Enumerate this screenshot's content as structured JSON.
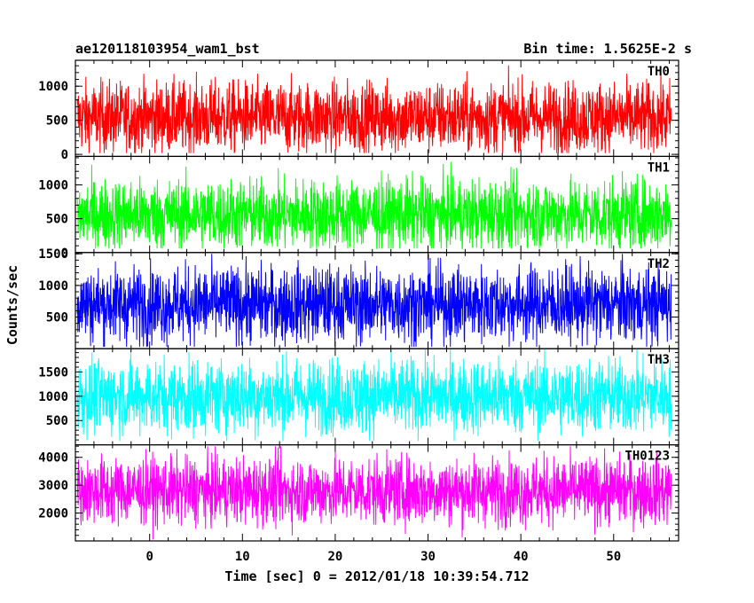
{
  "chart_data": {
    "type": "line",
    "title_left": "ae120118103954_wam1_bst",
    "title_right": "Bin time: 1.5625E-2 s",
    "xlabel": "Time [sec] 0 = 2012/01/18 10:39:54.712",
    "ylabel": "Counts/sec",
    "xlim": [
      -8,
      57
    ],
    "xticks": [
      0,
      10,
      20,
      30,
      40,
      50
    ],
    "bin_time_s": 0.015625,
    "data_range": [
      -7.8,
      56.2
    ],
    "panels": [
      {
        "name": "TH0",
        "color": "#ff0000",
        "ylim": [
          -30,
          1380
        ],
        "yticks": [
          0,
          500,
          1000
        ],
        "baseline": 540,
        "spread": 260,
        "min": 20,
        "max": 1370
      },
      {
        "name": "TH1",
        "color": "#00ff00",
        "ylim": [
          0,
          1420
        ],
        "yticks": [
          0,
          500,
          1000
        ],
        "baseline": 560,
        "spread": 260,
        "min": 60,
        "max": 1360
      },
      {
        "name": "TH2",
        "color": "#0000ff",
        "ylim": [
          0,
          1520
        ],
        "yticks": [
          500,
          1000,
          1500
        ],
        "baseline": 700,
        "spread": 300,
        "min": 30,
        "max": 1500
      },
      {
        "name": "TH3",
        "color": "#00ffff",
        "ylim": [
          0,
          1980
        ],
        "yticks": [
          500,
          1000,
          1500
        ],
        "baseline": 1000,
        "spread": 380,
        "min": 80,
        "max": 1980
      },
      {
        "name": "TH0123",
        "color": "#ff00ff",
        "ylim": [
          1000,
          4450
        ],
        "yticks": [
          2000,
          3000,
          4000
        ],
        "baseline": 2800,
        "spread": 600,
        "min": 1050,
        "max": 4400
      }
    ]
  }
}
